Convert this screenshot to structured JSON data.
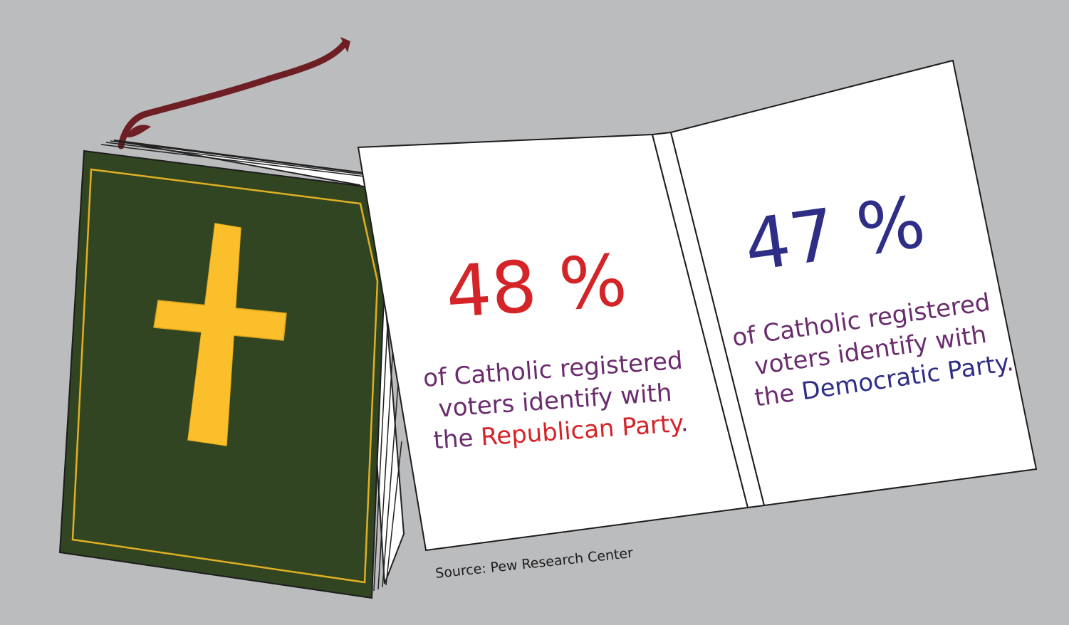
{
  "colors": {
    "background": "#bbbcbe",
    "cover": "#314522",
    "cross": "#fbbf2b",
    "ribbon": "#6e1f23",
    "republican": "#d42428",
    "democrat": "#2e2e86",
    "body_text": "#6b2c6e"
  },
  "bookmark": {
    "icon": "ribbon-bookmark-icon"
  },
  "closed_book": {
    "icon": "cross-icon"
  },
  "left_page": {
    "percent": "48 %",
    "line1": "of Catholic registered",
    "line2": "voters identify with",
    "line3_prefix": "the ",
    "party": "Republican Party",
    "line3_suffix": "."
  },
  "right_page": {
    "percent": "47 %",
    "line1": "of Catholic registered",
    "line2": "voters identify with",
    "line3_prefix": "the ",
    "party": "Democratic Party",
    "line3_suffix": "."
  },
  "source": "Source: Pew Research Center"
}
